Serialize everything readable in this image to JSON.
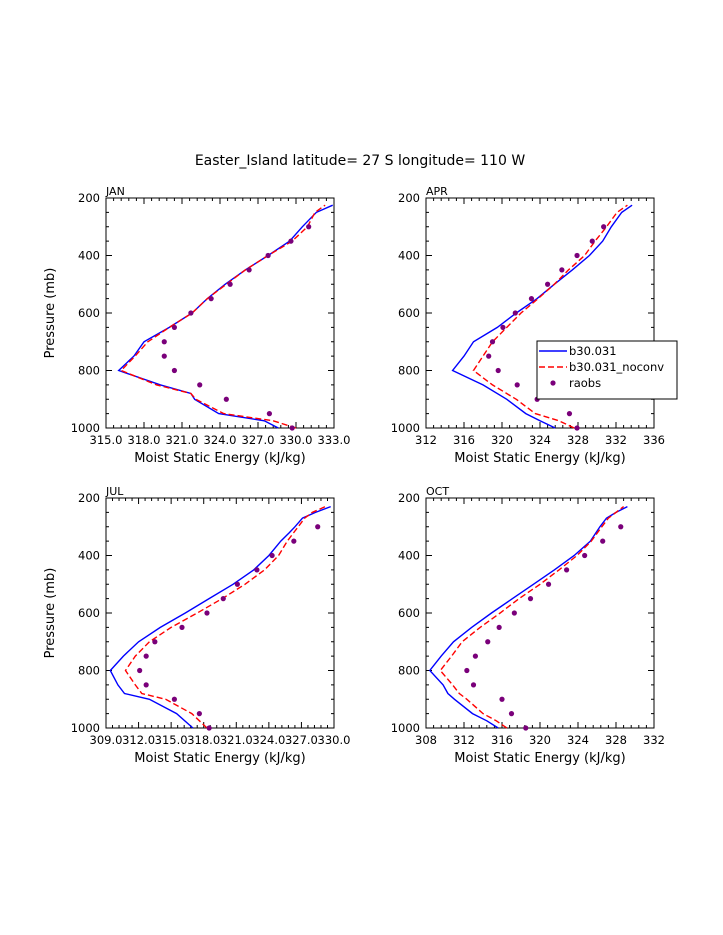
{
  "figure": {
    "title": "Easter_Island  latitude= 27 S longitude= 110 W"
  },
  "colors": {
    "b30": "#0000ff",
    "noconv": "#ff0000",
    "raobs": "#7a007a",
    "axis": "#000000"
  },
  "legend": {
    "entries": [
      {
        "name": "b30.031",
        "style": "solid"
      },
      {
        "name": "b30.031_noconv",
        "style": "dashed"
      },
      {
        "name": "raobs",
        "style": "marker"
      }
    ]
  },
  "chart_data": [
    {
      "type": "line",
      "panel": "JAN",
      "xlabel": "Moist Static Energy (kJ/kg)",
      "ylabel": "Pressure (mb)",
      "xlim": [
        315.0,
        333.0
      ],
      "xticks": [
        315.0,
        318.0,
        321.0,
        324.0,
        327.0,
        330.0,
        333.0
      ],
      "xtick_labels": [
        "315.0",
        "318.0",
        "321.0",
        "324.0",
        "327.0",
        "330.0",
        "333.0"
      ],
      "ylim": [
        200,
        1000
      ],
      "yticks": [
        200,
        400,
        600,
        800,
        1000
      ],
      "ytick_labels": [
        "200",
        "400",
        "600",
        "800",
        "1000"
      ],
      "series": [
        {
          "name": "b30.031",
          "pressure": [
            1000,
            975,
            950,
            900,
            880,
            850,
            800,
            750,
            700,
            650,
            600,
            550,
            500,
            450,
            400,
            350,
            300,
            250,
            225
          ],
          "values": [
            328.6,
            327.5,
            323.9,
            322.0,
            321.7,
            319.3,
            316.0,
            317.2,
            318.0,
            320.0,
            321.8,
            323.0,
            324.4,
            326.0,
            327.8,
            329.5,
            330.5,
            331.6,
            332.9
          ]
        },
        {
          "name": "b30.031_noconv",
          "pressure": [
            1000,
            975,
            950,
            900,
            880,
            850,
            800,
            750,
            700,
            650,
            600,
            550,
            500,
            450,
            400,
            350,
            300,
            250,
            225
          ],
          "values": [
            330.0,
            328.2,
            324.3,
            322.1,
            321.7,
            319.0,
            316.2,
            317.3,
            318.3,
            320.0,
            321.8,
            323.0,
            324.5,
            326.0,
            327.8,
            329.7,
            330.9,
            331.5,
            332.3
          ]
        },
        {
          "name": "raobs",
          "pressure": [
            1000,
            950,
            900,
            850,
            800,
            750,
            700,
            650,
            600,
            550,
            500,
            450,
            400,
            350,
            300
          ],
          "values": [
            329.7,
            327.9,
            324.5,
            322.4,
            320.4,
            319.6,
            319.6,
            320.4,
            321.7,
            323.3,
            324.8,
            326.3,
            327.8,
            329.6,
            331.0
          ]
        }
      ]
    },
    {
      "type": "line",
      "panel": "APR",
      "xlabel": "Moist Static Energy (kJ/kg)",
      "ylabel": "",
      "xlim": [
        312,
        336
      ],
      "xticks": [
        312,
        316,
        320,
        324,
        328,
        332,
        336
      ],
      "xtick_labels": [
        "312",
        "316",
        "320",
        "324",
        "328",
        "332",
        "336"
      ],
      "ylim": [
        200,
        1000
      ],
      "yticks": [
        200,
        400,
        600,
        800,
        1000
      ],
      "ytick_labels": [
        "200",
        "400",
        "600",
        "800",
        "1000"
      ],
      "series": [
        {
          "name": "b30.031",
          "pressure": [
            1000,
            975,
            950,
            900,
            850,
            800,
            750,
            700,
            650,
            600,
            550,
            500,
            450,
            400,
            350,
            300,
            250,
            225
          ],
          "values": [
            325.6,
            324.0,
            322.5,
            320.5,
            318.0,
            314.8,
            316.0,
            317.0,
            319.5,
            321.5,
            323.7,
            325.5,
            327.4,
            329.2,
            330.6,
            331.5,
            332.6,
            333.7
          ]
        },
        {
          "name": "b30.031_noconv",
          "pressure": [
            1000,
            975,
            950,
            900,
            850,
            800,
            750,
            700,
            650,
            600,
            550,
            500,
            450,
            400,
            350,
            300,
            250,
            225
          ],
          "values": [
            327.6,
            326.0,
            323.5,
            321.5,
            319.0,
            317.0,
            318.0,
            319.0,
            320.5,
            322.0,
            323.8,
            325.5,
            327.0,
            328.7,
            329.8,
            331.0,
            332.1,
            333.2
          ]
        },
        {
          "name": "raobs",
          "pressure": [
            1000,
            950,
            900,
            850,
            800,
            750,
            700,
            650,
            600,
            550,
            500,
            450,
            400,
            350,
            300
          ],
          "values": [
            327.9,
            327.1,
            323.7,
            321.6,
            319.6,
            318.6,
            319.0,
            320.1,
            321.4,
            323.1,
            324.8,
            326.3,
            327.9,
            329.5,
            330.7
          ]
        }
      ]
    },
    {
      "type": "line",
      "panel": "JUL",
      "xlabel": "Moist Static Energy (kJ/kg)",
      "ylabel": "Pressure (mb)",
      "xlim": [
        309.0,
        330.0
      ],
      "xticks": [
        309.0,
        312.0,
        315.0,
        318.0,
        321.0,
        324.0,
        327.0,
        330.0
      ],
      "xtick_labels": [
        "309.0",
        "312.0",
        "315.0",
        "318.0",
        "321.0",
        "324.0",
        "327.0",
        "330.0"
      ],
      "ylim": [
        200,
        1000
      ],
      "yticks": [
        200,
        400,
        600,
        800,
        1000
      ],
      "ytick_labels": [
        "200",
        "400",
        "600",
        "800",
        "1000"
      ],
      "series": [
        {
          "name": "b30.031",
          "pressure": [
            1000,
            950,
            900,
            880,
            850,
            800,
            750,
            700,
            650,
            600,
            550,
            500,
            450,
            400,
            350,
            320,
            300,
            270,
            250,
            230
          ],
          "values": [
            317.0,
            315.5,
            313.0,
            310.7,
            310.1,
            309.4,
            310.6,
            312.0,
            314.0,
            316.3,
            318.5,
            320.7,
            322.6,
            324.0,
            325.1,
            325.9,
            326.4,
            327.1,
            328.3,
            329.7
          ]
        },
        {
          "name": "b30.031_noconv",
          "pressure": [
            1000,
            950,
            900,
            880,
            850,
            800,
            750,
            700,
            650,
            600,
            550,
            500,
            450,
            400,
            350,
            320,
            300,
            270,
            250,
            230
          ],
          "values": [
            318.3,
            316.9,
            314.5,
            312.3,
            311.7,
            310.8,
            311.7,
            313.0,
            315.0,
            317.4,
            319.7,
            321.8,
            323.6,
            324.9,
            325.7,
            326.3,
            326.7,
            327.3,
            328.0,
            329.2
          ]
        },
        {
          "name": "raobs",
          "pressure": [
            1000,
            950,
            900,
            850,
            800,
            750,
            700,
            650,
            600,
            550,
            500,
            450,
            400,
            350,
            300
          ],
          "values": [
            318.5,
            317.6,
            315.3,
            312.7,
            312.1,
            312.7,
            313.5,
            316.0,
            318.3,
            319.8,
            321.1,
            322.9,
            324.3,
            326.3,
            328.5
          ]
        }
      ]
    },
    {
      "type": "line",
      "panel": "OCT",
      "xlabel": "Moist Static Energy (kJ/kg)",
      "ylabel": "",
      "xlim": [
        308,
        332
      ],
      "xticks": [
        308,
        312,
        316,
        320,
        324,
        328,
        332
      ],
      "xtick_labels": [
        "308",
        "312",
        "316",
        "320",
        "324",
        "328",
        "332"
      ],
      "ylim": [
        200,
        1000
      ],
      "yticks": [
        200,
        400,
        600,
        800,
        1000
      ],
      "ytick_labels": [
        "200",
        "400",
        "600",
        "800",
        "1000"
      ],
      "series": [
        {
          "name": "b30.031",
          "pressure": [
            1000,
            975,
            950,
            900,
            880,
            850,
            800,
            750,
            700,
            650,
            600,
            550,
            500,
            450,
            400,
            350,
            300,
            270,
            250,
            230
          ],
          "values": [
            315.6,
            314.4,
            312.9,
            311.0,
            310.3,
            309.8,
            308.4,
            309.6,
            310.9,
            312.8,
            314.9,
            317.1,
            319.3,
            321.5,
            323.6,
            325.3,
            326.3,
            327.0,
            328.0,
            329.2
          ]
        },
        {
          "name": "b30.031_noconv",
          "pressure": [
            1000,
            975,
            950,
            900,
            880,
            850,
            800,
            750,
            700,
            650,
            600,
            550,
            500,
            450,
            400,
            350,
            300,
            270,
            250,
            230
          ],
          "values": [
            316.5,
            315.4,
            314.0,
            312.3,
            311.5,
            310.8,
            309.5,
            310.7,
            311.8,
            313.7,
            315.8,
            317.8,
            320.0,
            322.0,
            323.9,
            325.4,
            326.5,
            327.2,
            328.0,
            328.8
          ]
        },
        {
          "name": "raobs",
          "pressure": [
            1000,
            950,
            900,
            850,
            800,
            750,
            700,
            650,
            600,
            550,
            500,
            450,
            400,
            350,
            300
          ],
          "values": [
            318.5,
            317.0,
            316.0,
            313.0,
            312.3,
            313.2,
            314.5,
            315.7,
            317.3,
            319.0,
            320.9,
            322.8,
            324.7,
            326.6,
            328.5
          ]
        }
      ]
    }
  ]
}
